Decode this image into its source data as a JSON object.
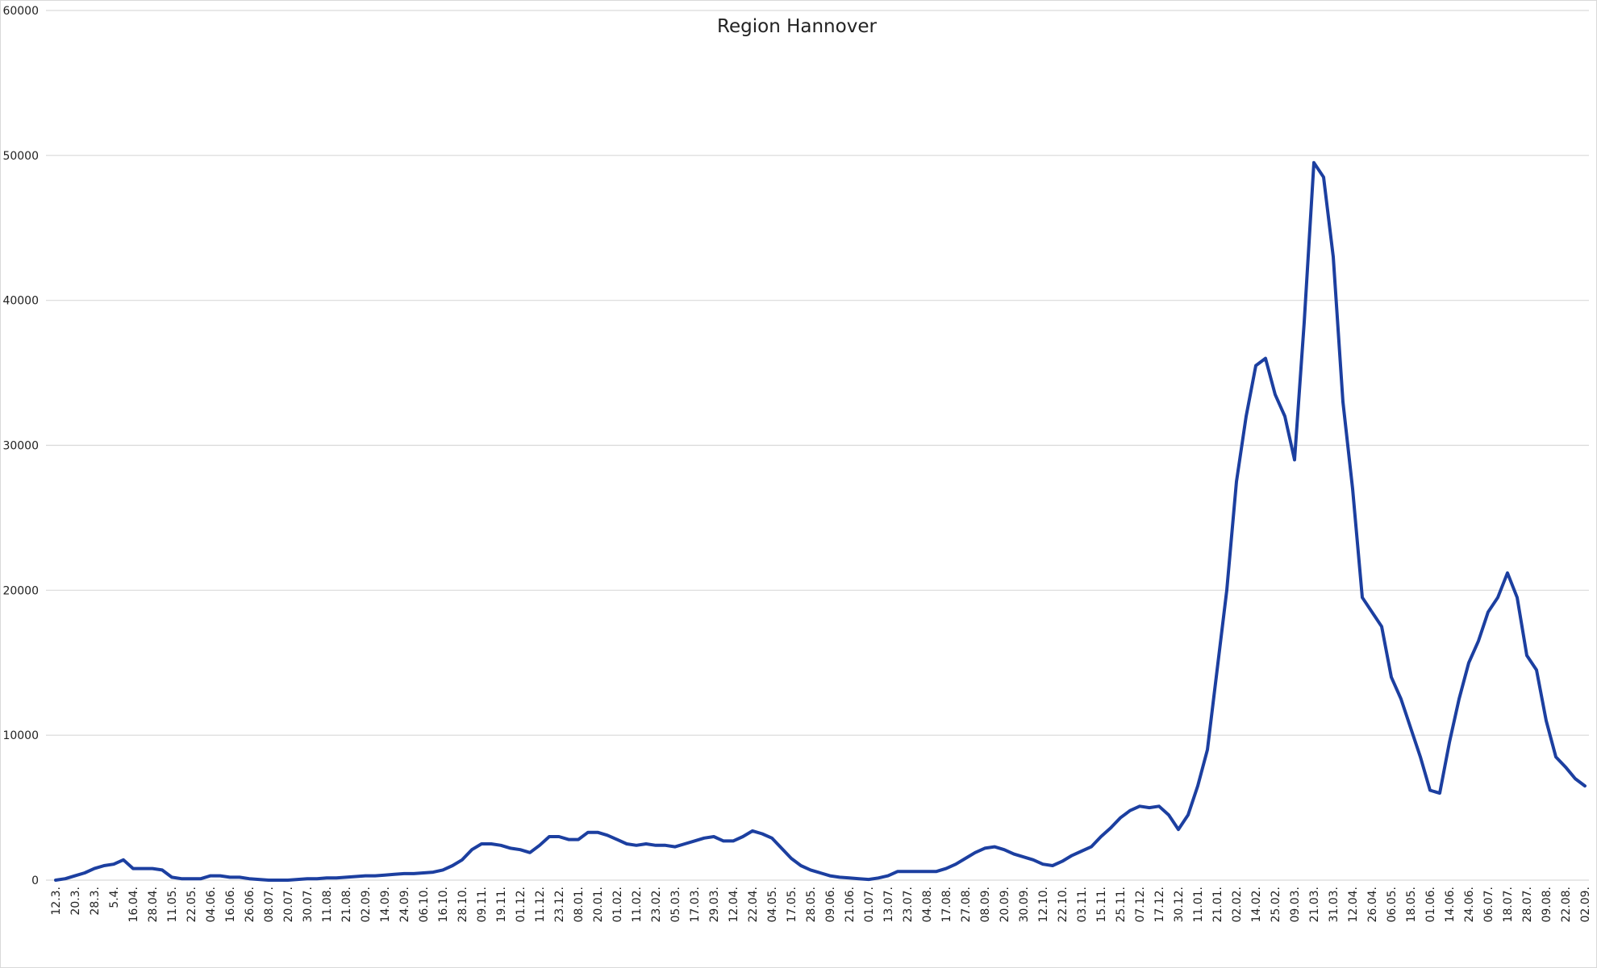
{
  "chart_data": {
    "type": "line",
    "title": "Region Hannover",
    "categories": [
      "12.3.",
      null,
      "20.3.",
      null,
      "28.3.",
      null,
      "5.4.",
      null,
      "16.04.",
      null,
      "28.04.",
      null,
      "11.05.",
      null,
      "22.05.",
      null,
      "04.06.",
      null,
      "16.06.",
      null,
      "26.06.",
      null,
      "08.07.",
      null,
      "20.07.",
      null,
      "30.07.",
      null,
      "11.08.",
      null,
      "21.08.",
      null,
      "02.09.",
      null,
      "14.09.",
      null,
      "24.09.",
      null,
      "06.10.",
      null,
      "16.10.",
      null,
      "28.10.",
      null,
      "09.11.",
      null,
      "19.11.",
      null,
      "01.12.",
      null,
      "11.12.",
      null,
      "23.12.",
      null,
      "08.01.",
      null,
      "20.01.",
      null,
      "01.02.",
      null,
      "11.02.",
      null,
      "23.02.",
      null,
      "05.03.",
      null,
      "17.03.",
      null,
      "29.03.",
      null,
      "12.04.",
      null,
      "22.04.",
      null,
      "04.05.",
      null,
      "17.05.",
      null,
      "28.05.",
      null,
      "09.06.",
      null,
      "21.06.",
      null,
      "01.07.",
      null,
      "13.07.",
      null,
      "23.07.",
      null,
      "04.08.",
      null,
      "17.08.",
      null,
      "27.08.",
      null,
      "08.09.",
      null,
      "20.09.",
      null,
      "30.09.",
      null,
      "12.10.",
      null,
      "22.10.",
      null,
      "03.11.",
      null,
      "15.11.",
      null,
      "25.11.",
      null,
      "07.12.",
      null,
      "17.12.",
      null,
      "30.12.",
      null,
      "11.01.",
      null,
      "21.01.",
      null,
      "02.02.",
      null,
      "14.02.",
      null,
      "25.02.",
      null,
      "09.03.",
      null,
      "21.03.",
      null,
      "31.03.",
      null,
      "12.04.",
      null,
      "26.04.",
      null,
      "06.05.",
      null,
      "18.05.",
      null,
      "01.06.",
      null,
      "14.06.",
      null,
      "24.06.",
      null,
      "06.07.",
      null,
      "18.07.",
      null,
      "28.07.",
      null,
      "09.08.",
      null,
      "22.08.",
      null,
      "02.09."
    ],
    "series": [
      {
        "name": "Region Hannover",
        "color": "#1c3fa0",
        "values": [
          0,
          100,
          300,
          500,
          800,
          1000,
          1100,
          1400,
          800,
          800,
          800,
          700,
          200,
          100,
          100,
          100,
          300,
          300,
          200,
          200,
          100,
          50,
          0,
          0,
          0,
          50,
          100,
          100,
          150,
          150,
          200,
          250,
          300,
          300,
          350,
          400,
          450,
          450,
          500,
          550,
          700,
          1000,
          1400,
          2100,
          2500,
          2500,
          2400,
          2200,
          2100,
          1900,
          2400,
          3000,
          3000,
          2800,
          2800,
          3300,
          3300,
          3100,
          2800,
          2500,
          2400,
          2500,
          2400,
          2400,
          2300,
          2500,
          2700,
          2900,
          3000,
          2700,
          2700,
          3000,
          3400,
          3200,
          2900,
          2200,
          1500,
          1000,
          700,
          500,
          300,
          200,
          150,
          100,
          50,
          150,
          300,
          600,
          600,
          600,
          600,
          600,
          800,
          1100,
          1500,
          1900,
          2200,
          2300,
          2100,
          1800,
          1600,
          1400,
          1100,
          1000,
          1300,
          1700,
          2000,
          2300,
          3000,
          3600,
          4300,
          4800,
          5100,
          5000,
          5100,
          4500,
          3500,
          4500,
          6500,
          9000,
          14500,
          20000,
          27500,
          32000,
          35500,
          36000,
          33500,
          32000,
          29000,
          38500,
          49500,
          48500,
          43000,
          33000,
          27000,
          19500,
          18500,
          17500,
          14000,
          12500,
          10500,
          8500,
          6200,
          6000,
          9500,
          12500,
          15000,
          16500,
          18500,
          19500,
          21200,
          19500,
          15500,
          14500,
          11000,
          8500,
          7800,
          7000,
          6500
        ]
      }
    ],
    "ylim": [
      0,
      60000
    ],
    "yticks": [
      0,
      10000,
      20000,
      30000,
      40000,
      50000,
      60000
    ],
    "grid": true
  }
}
